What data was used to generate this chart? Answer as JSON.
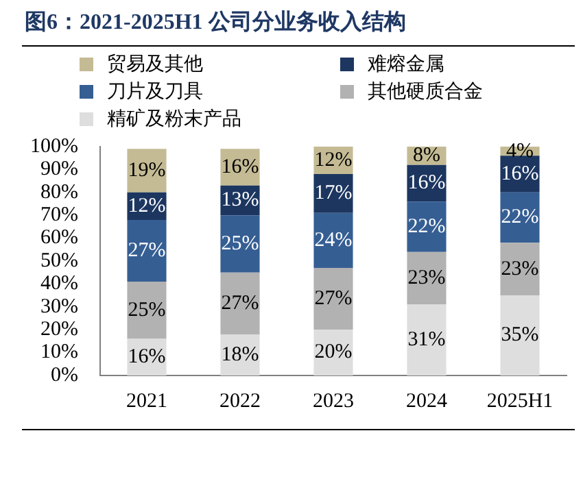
{
  "chart_data": {
    "type": "bar",
    "title": "图6：2021-2025H1 公司分业务收入结构",
    "stacked": true,
    "legend": "top",
    "grid": false,
    "categories": [
      "2021",
      "2022",
      "2023",
      "2024",
      "2025H1"
    ],
    "ylim": [
      0,
      100
    ],
    "yticks": [
      {
        "value": 0,
        "label": "0%"
      },
      {
        "value": 10,
        "label": "10%"
      },
      {
        "value": 20,
        "label": "20%"
      },
      {
        "value": 30,
        "label": "30%"
      },
      {
        "value": 40,
        "label": "40%"
      },
      {
        "value": 50,
        "label": "50%"
      },
      {
        "value": 60,
        "label": "60%"
      },
      {
        "value": 70,
        "label": "70%"
      },
      {
        "value": 80,
        "label": "80%"
      },
      {
        "value": 90,
        "label": "90%"
      },
      {
        "value": 100,
        "label": "100%"
      }
    ],
    "series": [
      {
        "name": "精矿及粉末产品",
        "color": "#dedede",
        "values": [
          16,
          18,
          20,
          31,
          35
        ],
        "value_labels": [
          "16%",
          "18%",
          "20%",
          "31%",
          "35%"
        ]
      },
      {
        "name": "其他硬质合金",
        "color": "#b2b2b2",
        "values": [
          25,
          27,
          27,
          23,
          23
        ],
        "value_labels": [
          "25%",
          "27%",
          "27%",
          "23%",
          "23%"
        ]
      },
      {
        "name": "刀片及刀具",
        "color": "#355e93",
        "values": [
          27,
          25,
          24,
          22,
          22
        ],
        "value_labels": [
          "27%",
          "25%",
          "24%",
          "22%",
          "22%"
        ]
      },
      {
        "name": "难熔金属",
        "color": "#1c3660",
        "values": [
          12,
          13,
          17,
          16,
          16
        ],
        "value_labels": [
          "12%",
          "13%",
          "17%",
          "16%",
          "16%"
        ]
      },
      {
        "name": "贸易及其他",
        "color": "#c4bb94",
        "values": [
          19,
          16,
          12,
          8,
          4
        ],
        "value_labels": [
          "19%",
          "16%",
          "12%",
          "8%",
          "4%"
        ]
      }
    ]
  }
}
